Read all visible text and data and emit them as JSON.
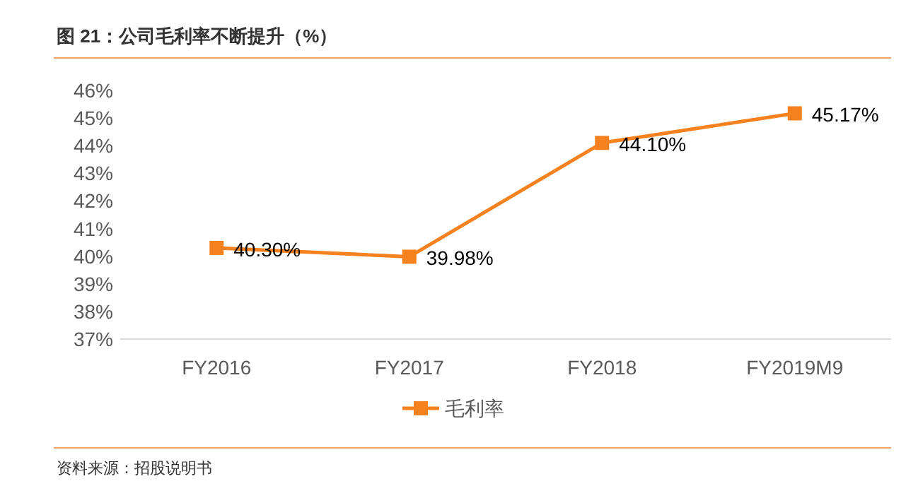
{
  "chart_data": {
    "type": "line",
    "title": "图 21：公司毛利率不断提升（%）",
    "annotations": [
      "资料来源：招股说明书"
    ],
    "categories": [
      "FY2016",
      "FY2017",
      "FY2018",
      "FY2019M9"
    ],
    "series": [
      {
        "name": "毛利率",
        "color": "#f5821f",
        "values": [
          40.3,
          39.98,
          44.1,
          45.17
        ],
        "value_labels": [
          "40.30%",
          "39.98%",
          "44.10%",
          "45.17%"
        ]
      }
    ],
    "ylim": [
      37,
      46
    ],
    "yticks": [
      {
        "value": 37,
        "label": "37%"
      },
      {
        "value": 38,
        "label": "38%"
      },
      {
        "value": 39,
        "label": "39%"
      },
      {
        "value": 40,
        "label": "40%"
      },
      {
        "value": 41,
        "label": "41%"
      },
      {
        "value": 42,
        "label": "42%"
      },
      {
        "value": 43,
        "label": "43%"
      },
      {
        "value": 44,
        "label": "44%"
      },
      {
        "value": 45,
        "label": "45%"
      },
      {
        "value": 46,
        "label": "46%"
      }
    ],
    "legend": "bottom",
    "marker": "square",
    "line_style": "solid"
  }
}
